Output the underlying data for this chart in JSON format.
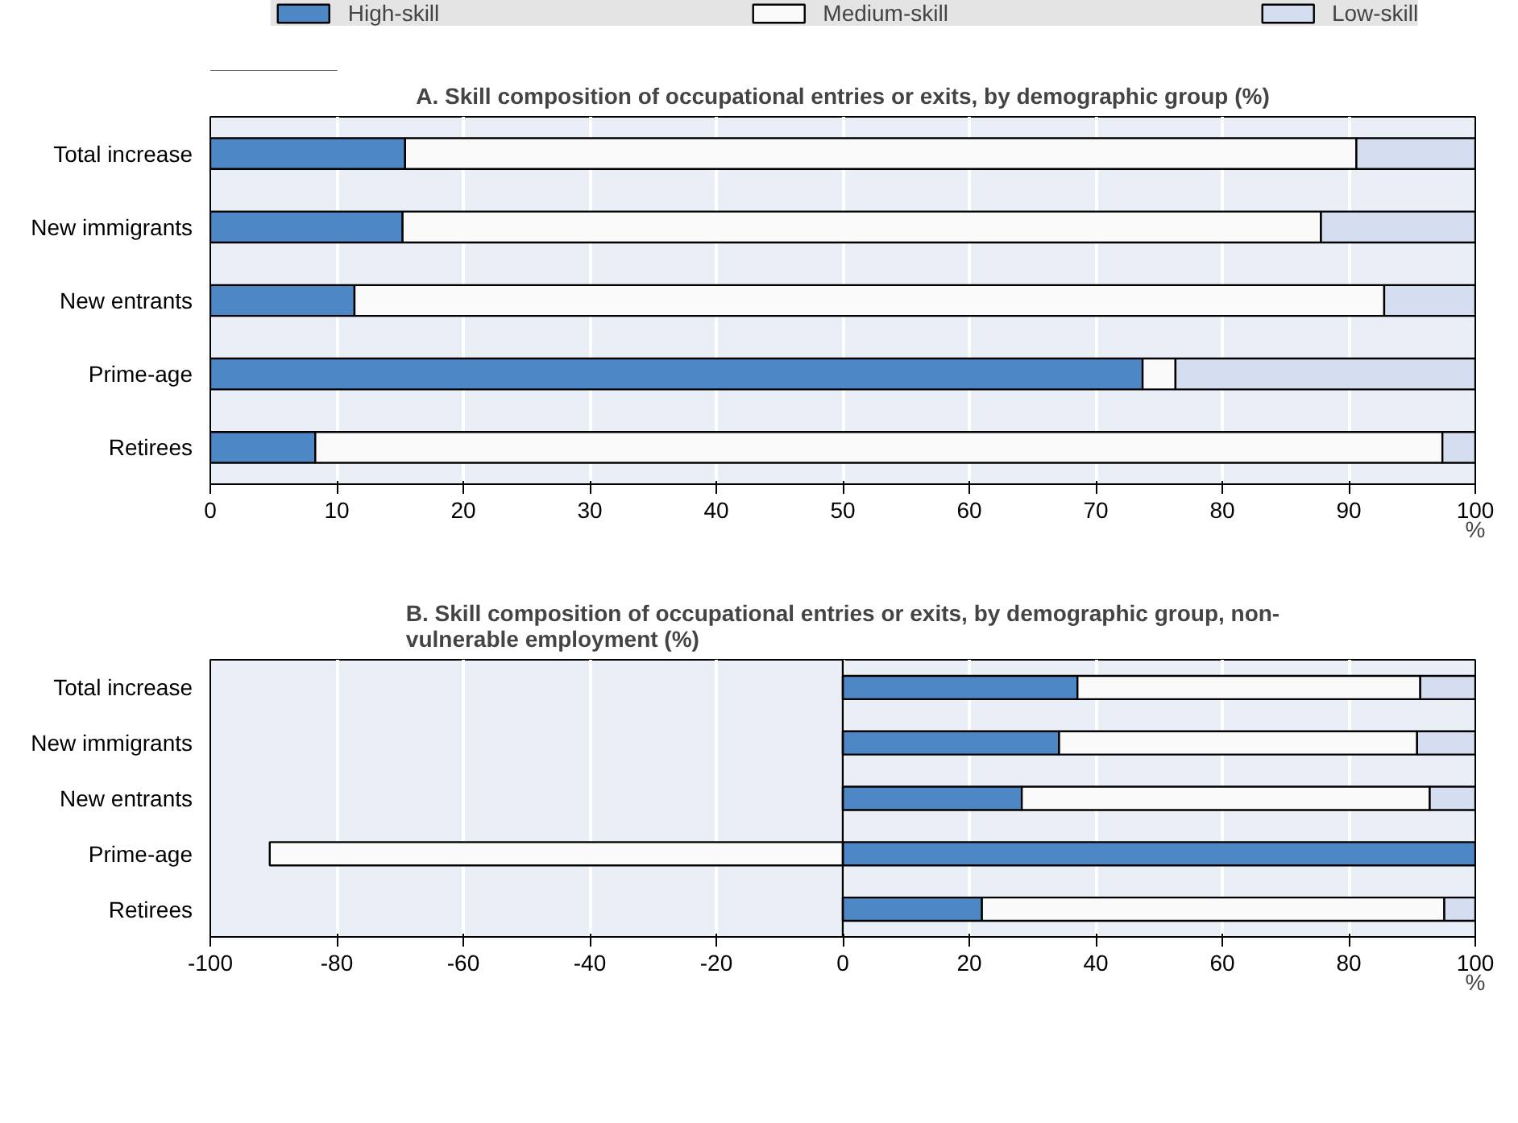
{
  "chart_data": [
    {
      "type": "bar",
      "orientation": "horizontal",
      "stacked": true,
      "title": "A. Skill composition of occupational entries or exits, by demographic group (%)",
      "xlabel": "%",
      "categories": [
        "Total increase",
        "New immigrants",
        "New entrants",
        "Prime-age",
        "Retirees"
      ],
      "series": [
        {
          "name": "High-skill",
          "color": "#4e87c6",
          "values": [
            15.4,
            15.2,
            11.4,
            73.7,
            8.3
          ]
        },
        {
          "name": "Medium-skill",
          "color": "#fafafa",
          "values": [
            75.2,
            72.6,
            81.4,
            2.6,
            89.1
          ]
        },
        {
          "name": "Low-skill",
          "color": "#d5ddf0",
          "values": [
            9.4,
            12.2,
            7.2,
            23.7,
            2.6
          ]
        }
      ],
      "xlim": [
        0,
        100
      ],
      "xticks": [
        0,
        10,
        20,
        30,
        40,
        50,
        60,
        70,
        80,
        90,
        100
      ],
      "grid": "x",
      "legend": "top"
    },
    {
      "type": "bar",
      "orientation": "horizontal",
      "stacked": true,
      "title": "B. Skill composition of occupational entries or exits, by demographic group, non-\nvulnerable employment (%)",
      "xlabel": "%",
      "categories": [
        "Total increase",
        "New immigrants",
        "New entrants",
        "Prime-age",
        "Retirees"
      ],
      "series": [
        {
          "color": "#4e87c6",
          "values": [
            37.1,
            34.2,
            28.3,
            100,
            22.0
          ]
        },
        {
          "color": "#fafafa",
          "values": [
            54.2,
            56.6,
            64.5,
            -90.6,
            73.1
          ]
        },
        {
          "color": "#d5ddf0",
          "values": [
            8.7,
            9.2,
            7.2,
            null,
            4.9
          ]
        }
      ],
      "xlim": [
        -100,
        100
      ],
      "xticks": [
        -100,
        -80,
        -60,
        -40,
        -20,
        0,
        20,
        40,
        60,
        80,
        100
      ],
      "grid": "x"
    }
  ]
}
